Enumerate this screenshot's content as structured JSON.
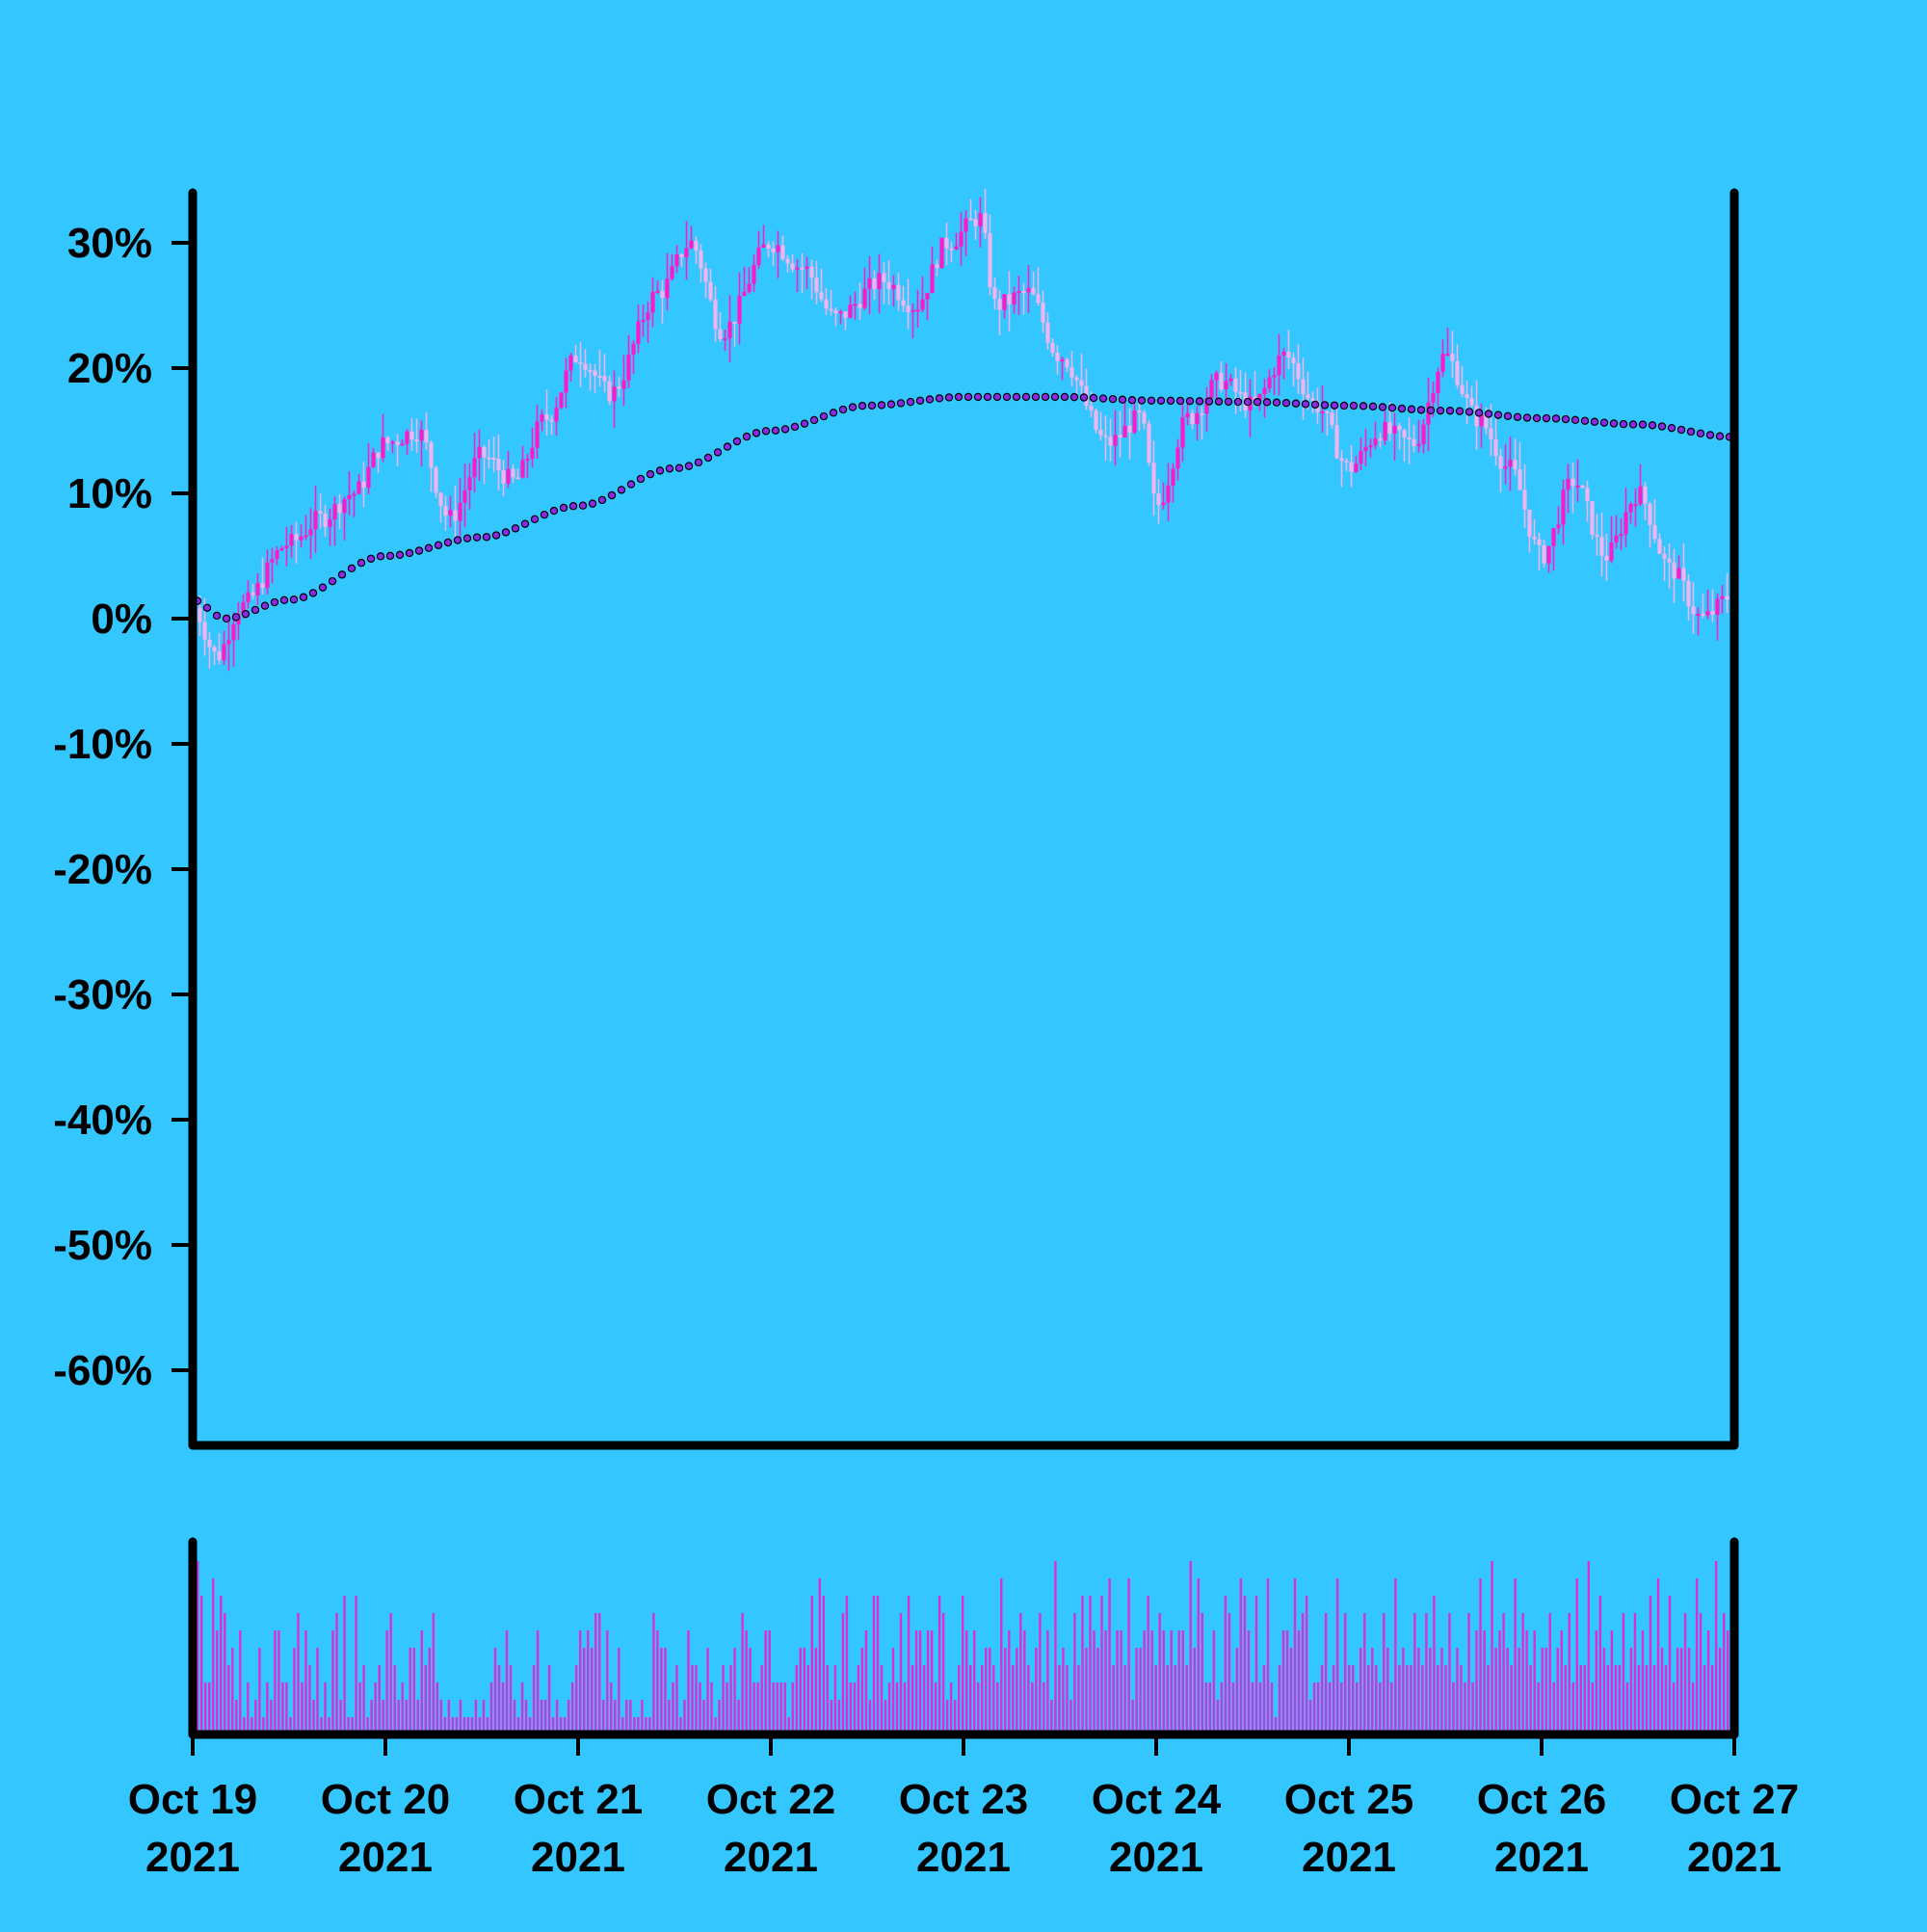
{
  "colors": {
    "background": "#33c6ff",
    "candle_up": "#ff19c8",
    "candle_down": "#f0b4f0",
    "trend_line": "#8a2be2",
    "volume": "#d830d8",
    "axis": "#000000"
  },
  "chart_data": {
    "type": "candlestick",
    "title": "",
    "xlabel": "",
    "ylabel": "",
    "x_ticks": [
      {
        "date": "2021-10-19",
        "line1": "Oct 19",
        "line2": "2021"
      },
      {
        "date": "2021-10-20",
        "line1": "Oct 20",
        "line2": "2021"
      },
      {
        "date": "2021-10-21",
        "line1": "Oct 21",
        "line2": "2021"
      },
      {
        "date": "2021-10-22",
        "line1": "Oct 22",
        "line2": "2021"
      },
      {
        "date": "2021-10-23",
        "line1": "Oct 23",
        "line2": "2021"
      },
      {
        "date": "2021-10-24",
        "line1": "Oct 24",
        "line2": "2021"
      },
      {
        "date": "2021-10-25",
        "line1": "Oct 25",
        "line2": "2021"
      },
      {
        "date": "2021-10-26",
        "line1": "Oct 26",
        "line2": "2021"
      },
      {
        "date": "2021-10-27",
        "line1": "Oct 27",
        "line2": "2021"
      }
    ],
    "y_ticks": [
      "30%",
      "20%",
      "10%",
      "0%",
      "-10%",
      "-20%",
      "-30%",
      "-40%",
      "-50%",
      "-60%"
    ],
    "y_tick_values": [
      30,
      20,
      10,
      0,
      -10,
      -20,
      -30,
      -40,
      -50,
      -60
    ],
    "ylim": [
      -66,
      34
    ],
    "xlim": [
      "2021-10-19",
      "2021-10-27"
    ],
    "grid": false,
    "legend": "none",
    "price_anchors": [
      [
        "2021-10-19T00:00",
        1
      ],
      [
        "2021-10-19T03:00",
        -3
      ],
      [
        "2021-10-19T06:00",
        1
      ],
      [
        "2021-10-19T12:00",
        6
      ],
      [
        "2021-10-19T16:00",
        8
      ],
      [
        "2021-10-19T20:00",
        10
      ],
      [
        "2021-10-20T00:00",
        14
      ],
      [
        "2021-10-20T04:00",
        15
      ],
      [
        "2021-10-20T08:00",
        8
      ],
      [
        "2021-10-20T12:00",
        13
      ],
      [
        "2021-10-20T16:00",
        11
      ],
      [
        "2021-10-20T20:00",
        16
      ],
      [
        "2021-10-21T00:00",
        21
      ],
      [
        "2021-10-21T04:00",
        18
      ],
      [
        "2021-10-21T10:00",
        26
      ],
      [
        "2021-10-21T14:00",
        30
      ],
      [
        "2021-10-21T18:00",
        23
      ],
      [
        "2021-10-22T00:00",
        30
      ],
      [
        "2021-10-22T04:00",
        28
      ],
      [
        "2021-10-22T08:00",
        24
      ],
      [
        "2021-10-22T14:00",
        27
      ],
      [
        "2021-10-22T18:00",
        25
      ],
      [
        "2021-10-22T22:00",
        30
      ],
      [
        "2021-10-23T02:00",
        32
      ],
      [
        "2021-10-23T04:00",
        25
      ],
      [
        "2021-10-23T08:00",
        26
      ],
      [
        "2021-10-23T12:00",
        21
      ],
      [
        "2021-10-23T18:00",
        14
      ],
      [
        "2021-10-23T22:00",
        16
      ],
      [
        "2021-10-24T00:00",
        9
      ],
      [
        "2021-10-24T04:00",
        16
      ],
      [
        "2021-10-24T08:00",
        19
      ],
      [
        "2021-10-24T12:00",
        17
      ],
      [
        "2021-10-24T16:00",
        21
      ],
      [
        "2021-10-24T20:00",
        17
      ],
      [
        "2021-10-25T00:00",
        12
      ],
      [
        "2021-10-25T04:00",
        15
      ],
      [
        "2021-10-25T08:00",
        14
      ],
      [
        "2021-10-25T12:00",
        21
      ],
      [
        "2021-10-25T16:00",
        16
      ],
      [
        "2021-10-25T20:00",
        12
      ],
      [
        "2021-10-26T00:00",
        5
      ],
      [
        "2021-10-26T04:00",
        11
      ],
      [
        "2021-10-26T08:00",
        5
      ],
      [
        "2021-10-26T12:00",
        10
      ],
      [
        "2021-10-26T16:00",
        4
      ],
      [
        "2021-10-26T20:00",
        0
      ],
      [
        "2021-10-27T00:00",
        2
      ],
      [
        "2021-10-27T04:00",
        -1
      ],
      [
        "2021-10-27T08:00",
        3
      ],
      [
        "2021-10-27T12:00",
        4
      ],
      [
        "2021-10-27T16:00",
        2
      ],
      [
        "2021-10-27T20:00",
        8
      ],
      [
        "2021-10-27T22:00",
        3
      ],
      [
        "2021-10-27T23:59",
        6
      ]
    ],
    "trend_anchors": [
      [
        "2021-10-19T00:00",
        1.5
      ],
      [
        "2021-10-19T04:00",
        0
      ],
      [
        "2021-10-19T12:00",
        1.5
      ],
      [
        "2021-10-20T00:00",
        5
      ],
      [
        "2021-10-20T12:00",
        6.5
      ],
      [
        "2021-10-21T00:00",
        9
      ],
      [
        "2021-10-21T12:00",
        12
      ],
      [
        "2021-10-22T00:00",
        15
      ],
      [
        "2021-10-22T12:00",
        17
      ],
      [
        "2021-10-23T00:00",
        17.7
      ],
      [
        "2021-10-23T12:00",
        17.7
      ],
      [
        "2021-10-24T00:00",
        17.4
      ],
      [
        "2021-10-24T12:00",
        17.3
      ],
      [
        "2021-10-25T00:00",
        17.0
      ],
      [
        "2021-10-25T12:00",
        16.6
      ],
      [
        "2021-10-26T00:00",
        16.0
      ],
      [
        "2021-10-26T12:00",
        15.5
      ],
      [
        "2021-10-27T00:00",
        14.5
      ],
      [
        "2021-10-27T23:59",
        14.2
      ]
    ],
    "volume": [
      10,
      8,
      3,
      3,
      9,
      6,
      8,
      7,
      4,
      5,
      2,
      6,
      1,
      3,
      1,
      2,
      5,
      1,
      3,
      2,
      6,
      6,
      3,
      3,
      1,
      5,
      7,
      3,
      6,
      4,
      2,
      5,
      1,
      3,
      1,
      6,
      7,
      2,
      8,
      1,
      1,
      8,
      3,
      4,
      1,
      2,
      3,
      4,
      2,
      6,
      7,
      4,
      2,
      3,
      2,
      5,
      5,
      2,
      6,
      4,
      5,
      7,
      3,
      2,
      1,
      2,
      1,
      1,
      2,
      1,
      1,
      1,
      2,
      1,
      2,
      1,
      3,
      5,
      4,
      3,
      6,
      4,
      2,
      1,
      3,
      2,
      1,
      4,
      6,
      2,
      2,
      4,
      1,
      2,
      1,
      1,
      2,
      3,
      4,
      6,
      5,
      6,
      5,
      7,
      7,
      2,
      6,
      3,
      2,
      5,
      1,
      2,
      2,
      1,
      1,
      2,
      1,
      1,
      7,
      6,
      5,
      5,
      2,
      3,
      4,
      1,
      2,
      6,
      4,
      4,
      3,
      2,
      5,
      3,
      1,
      2,
      4,
      3,
      4,
      5,
      2,
      7,
      6,
      5,
      3,
      3,
      4,
      6,
      6,
      3,
      3,
      3,
      3,
      1,
      3,
      4,
      5,
      5,
      4,
      8,
      5,
      9,
      8,
      4,
      2,
      4,
      2,
      7,
      8,
      3,
      3,
      4,
      5,
      6,
      2,
      8,
      8,
      4,
      2,
      3,
      5,
      3,
      7,
      3,
      8,
      4,
      6,
      6,
      4,
      6,
      6,
      3,
      8,
      7,
      2,
      3,
      2,
      4,
      8,
      6,
      4,
      6,
      3,
      4,
      5,
      5,
      4,
      3,
      9,
      5,
      6,
      4,
      5,
      7,
      6,
      4,
      3,
      5,
      7,
      3,
      6,
      2,
      10,
      4,
      5,
      4,
      2,
      7,
      4,
      8,
      5,
      8,
      6,
      5,
      8,
      6,
      9,
      4,
      6,
      6,
      4,
      9,
      2,
      5,
      5,
      6,
      8,
      6,
      4,
      7,
      6,
      4,
      6,
      4,
      6,
      6,
      4,
      10,
      5,
      9,
      7,
      3,
      3,
      6,
      2,
      3,
      8,
      7,
      3,
      5,
      9,
      8,
      6,
      3,
      8,
      3,
      4,
      9,
      3,
      1,
      4,
      6,
      6,
      5,
      9,
      6,
      7,
      8,
      2,
      3,
      3,
      4,
      7,
      3,
      4,
      9,
      3,
      7,
      4,
      4,
      3,
      5,
      7,
      4,
      5,
      4,
      3,
      7,
      5,
      3,
      9,
      4,
      5,
      4,
      4,
      7,
      5,
      4,
      7,
      5,
      8,
      4,
      5,
      4,
      7,
      3,
      5,
      4,
      3,
      7,
      3,
      6,
      9,
      6,
      4,
      10,
      5,
      6,
      7,
      5,
      4,
      9,
      5,
      7,
      6,
      4,
      6,
      3,
      5,
      5,
      7,
      3,
      5,
      6,
      4,
      7,
      3,
      9,
      4,
      4,
      10,
      3,
      6,
      8,
      5,
      4,
      6,
      4,
      4,
      7,
      3,
      5,
      7,
      4,
      6,
      4,
      8,
      4,
      9,
      5,
      4,
      8,
      3,
      5,
      5,
      7,
      5,
      3,
      9,
      7,
      4,
      6,
      4,
      10,
      5,
      7,
      6,
      4,
      6
    ]
  }
}
